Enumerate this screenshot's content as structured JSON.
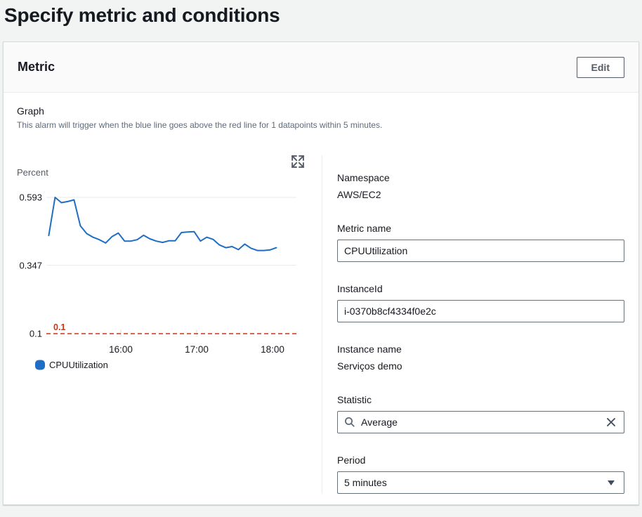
{
  "page": {
    "title": "Specify metric and conditions"
  },
  "card": {
    "title": "Metric",
    "edit_button_label": "Edit"
  },
  "graph_section": {
    "heading": "Graph",
    "description": "This alarm will trigger when the blue line goes above the red line for 1 datapoints within 5 minutes."
  },
  "icons": {
    "expand": "expand-arrows-icon",
    "search": "search-icon",
    "clear": "clear-x-icon",
    "caret": "chevron-down-icon"
  },
  "chart_data": {
    "type": "line",
    "title": "",
    "ylabel": "Percent",
    "xlabel": "",
    "grid": true,
    "legend_position": "bottom-left",
    "y_ticks": [
      {
        "value": 0.593,
        "label": "0.593"
      },
      {
        "value": 0.347,
        "label": "0.347"
      },
      {
        "value": 0.1,
        "label": "0.1"
      }
    ],
    "ylim": [
      0.1,
      0.593
    ],
    "x_ticks": [
      {
        "minutes": 60,
        "label": "16:00"
      },
      {
        "minutes": 120,
        "label": "17:00"
      },
      {
        "minutes": 180,
        "label": "18:00"
      }
    ],
    "threshold": {
      "value": 0.1,
      "label": "0.1",
      "color": "#d13212",
      "style": "dashed"
    },
    "series": [
      {
        "name": "CPUUtilization",
        "color": "#1f6ec4",
        "points": [
          [
            3,
            0.455
          ],
          [
            8,
            0.593
          ],
          [
            13,
            0.574
          ],
          [
            18,
            0.578
          ],
          [
            23,
            0.584
          ],
          [
            28,
            0.49
          ],
          [
            33,
            0.462
          ],
          [
            38,
            0.449
          ],
          [
            43,
            0.44
          ],
          [
            48,
            0.428
          ],
          [
            53,
            0.451
          ],
          [
            58,
            0.464
          ],
          [
            63,
            0.435
          ],
          [
            68,
            0.435
          ],
          [
            73,
            0.44
          ],
          [
            78,
            0.456
          ],
          [
            83,
            0.443
          ],
          [
            88,
            0.435
          ],
          [
            93,
            0.43
          ],
          [
            98,
            0.436
          ],
          [
            103,
            0.436
          ],
          [
            108,
            0.466
          ],
          [
            113,
            0.468
          ],
          [
            118,
            0.469
          ],
          [
            123,
            0.435
          ],
          [
            128,
            0.449
          ],
          [
            133,
            0.441
          ],
          [
            138,
            0.421
          ],
          [
            143,
            0.411
          ],
          [
            148,
            0.415
          ],
          [
            153,
            0.404
          ],
          [
            158,
            0.424
          ],
          [
            163,
            0.409
          ],
          [
            168,
            0.401
          ],
          [
            173,
            0.401
          ],
          [
            178,
            0.403
          ],
          [
            183,
            0.411
          ]
        ]
      }
    ]
  },
  "details": {
    "namespace": {
      "label": "Namespace",
      "value": "AWS/EC2"
    },
    "metric_name": {
      "label": "Metric name",
      "value": "CPUUtilization"
    },
    "instance_id": {
      "label": "InstanceId",
      "value": "i-0370b8cf4334f0e2c"
    },
    "instance_name": {
      "label": "Instance name",
      "value": "Serviços demo"
    },
    "statistic": {
      "label": "Statistic",
      "value": "Average"
    },
    "period": {
      "label": "Period",
      "value": "5 minutes"
    }
  },
  "colors": {
    "series_blue": "#1f6ec4",
    "threshold_red": "#d13212",
    "grid_gray": "#e9e9e9"
  }
}
